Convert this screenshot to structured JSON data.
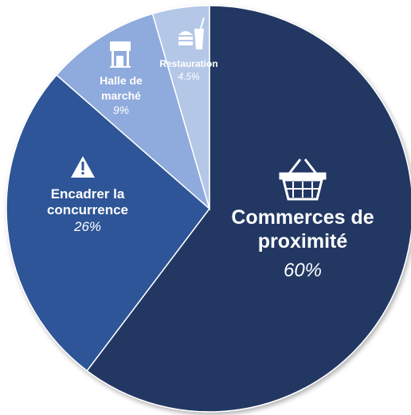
{
  "chart_data": {
    "type": "pie",
    "categories": [
      "Commerces de proximité",
      "Encadrer la concurrence",
      "Halle de marché",
      "Restauration"
    ],
    "values": [
      60,
      26,
      9,
      4.5
    ],
    "value_labels": [
      "60%",
      "26%",
      "9%",
      "4,5%"
    ],
    "colors": [
      "#203864",
      "#2f5597",
      "#8faadc",
      "#b4c7e7"
    ]
  }
}
